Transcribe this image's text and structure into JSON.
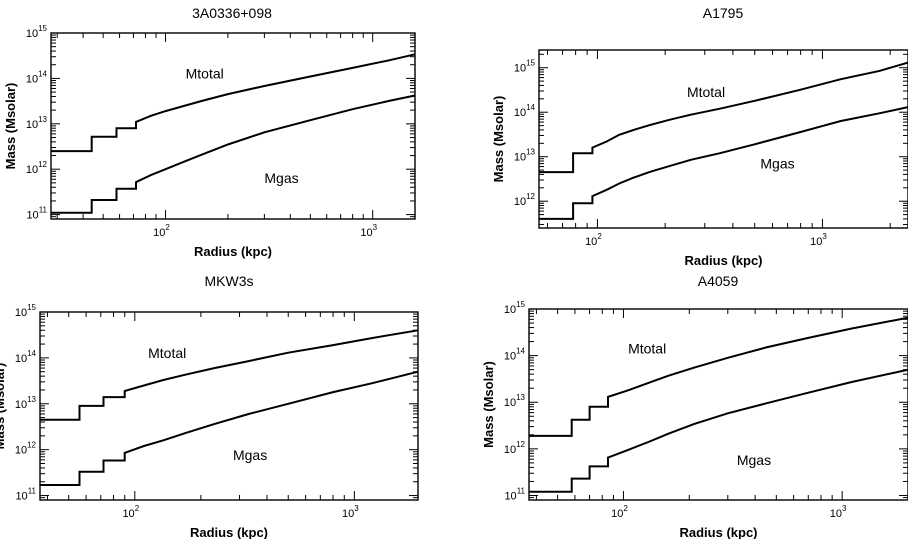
{
  "chart_data": [
    {
      "type": "line",
      "title": "3A0336+098",
      "xlabel": "Radius (kpc)",
      "ylabel": "Mass (Msolar)",
      "xscale": "log",
      "yscale": "log",
      "xlim": [
        28,
        1600
      ],
      "ylim": [
        80000000000.0,
        1000000000000000.0
      ],
      "xticks": [
        {
          "base": "10",
          "exp": "2",
          "value": 100
        },
        {
          "base": "10",
          "exp": "3",
          "value": 1000
        }
      ],
      "yticks": [
        {
          "base": "10",
          "exp": "11",
          "value": 100000000000.0
        },
        {
          "base": "10",
          "exp": "12",
          "value": 1000000000000.0
        },
        {
          "base": "10",
          "exp": "13",
          "value": 10000000000000.0
        },
        {
          "base": "10",
          "exp": "14",
          "value": 100000000000000.0
        },
        {
          "base": "10",
          "exp": "15",
          "value": 1000000000000000.0
        }
      ],
      "series": [
        {
          "name": "Mtotal",
          "label_at": [
            125,
            100000000000000.0
          ],
          "x": [
            28,
            44,
            44,
            58,
            58,
            72,
            72,
            85,
            100,
            120,
            150,
            200,
            300,
            500,
            800,
            1200,
            1600
          ],
          "y": [
            2500000000000.0,
            2500000000000.0,
            5200000000000.0,
            5200000000000.0,
            8000000000000.0,
            8000000000000.0,
            11000000000000.0,
            15000000000000.0,
            19000000000000.0,
            24000000000000.0,
            32000000000000.0,
            45000000000000.0,
            68000000000000.0,
            110000000000000.0,
            170000000000000.0,
            250000000000000.0,
            340000000000000.0
          ]
        },
        {
          "name": "Mgas",
          "label_at": [
            300,
            500000000000.0
          ],
          "x": [
            28,
            44,
            44,
            58,
            58,
            72,
            72,
            85,
            100,
            120,
            150,
            200,
            300,
            500,
            800,
            1200,
            1600
          ],
          "y": [
            110000000000.0,
            110000000000.0,
            210000000000.0,
            210000000000.0,
            370000000000.0,
            370000000000.0,
            520000000000.0,
            740000000000.0,
            1000000000000.0,
            1400000000000.0,
            2100000000000.0,
            3500000000000.0,
            6500000000000.0,
            12000000000000.0,
            21000000000000.0,
            32000000000000.0,
            42000000000000.0
          ]
        }
      ]
    },
    {
      "type": "line",
      "title": "A1795",
      "xlabel": "Radius (kpc)",
      "ylabel": "Mass (Msolar)",
      "xscale": "log",
      "yscale": "log",
      "xlim": [
        55,
        2400
      ],
      "ylim": [
        250000000000.0,
        2500000000000000.0
      ],
      "xticks": [
        {
          "base": "10",
          "exp": "2",
          "value": 100
        },
        {
          "base": "10",
          "exp": "3",
          "value": 1000
        }
      ],
      "yticks": [
        {
          "base": "10",
          "exp": "12",
          "value": 1000000000000.0
        },
        {
          "base": "10",
          "exp": "13",
          "value": 10000000000000.0
        },
        {
          "base": "10",
          "exp": "14",
          "value": 100000000000000.0
        },
        {
          "base": "10",
          "exp": "15",
          "value": 1000000000000000.0
        }
      ],
      "series": [
        {
          "name": "Mtotal",
          "label_at": [
            250,
            220000000000000.0
          ],
          "x": [
            55,
            78,
            78,
            95,
            95,
            110,
            125,
            145,
            170,
            210,
            260,
            350,
            500,
            800,
            1200,
            1800,
            2400
          ],
          "y": [
            4500000000000.0,
            4500000000000.0,
            12000000000000.0,
            12000000000000.0,
            16000000000000.0,
            22000000000000.0,
            31000000000000.0,
            40000000000000.0,
            51000000000000.0,
            68000000000000.0,
            88000000000000.0,
            120000000000000.0,
            180000000000000.0,
            320000000000000.0,
            550000000000000.0,
            850000000000000.0,
            1300000000000000.0
          ]
        },
        {
          "name": "Mgas",
          "label_at": [
            530,
            5500000000000.0
          ],
          "x": [
            55,
            78,
            78,
            95,
            95,
            110,
            125,
            145,
            170,
            210,
            260,
            350,
            500,
            800,
            1200,
            1800,
            2400
          ],
          "y": [
            400000000000.0,
            400000000000.0,
            900000000000.0,
            900000000000.0,
            1300000000000.0,
            1800000000000.0,
            2500000000000.0,
            3400000000000.0,
            4500000000000.0,
            6200000000000.0,
            8500000000000.0,
            12000000000000.0,
            19000000000000.0,
            36000000000000.0,
            63000000000000.0,
            95000000000000.0,
            130000000000000.0
          ]
        }
      ]
    },
    {
      "type": "line",
      "title": "MKW3s",
      "xlabel": "Radius (kpc)",
      "ylabel": "Mass (Msolar)",
      "xscale": "log",
      "yscale": "log",
      "xlim": [
        37,
        1950
      ],
      "ylim": [
        80000000000.0,
        1000000000000000.0
      ],
      "xticks": [
        {
          "base": "10",
          "exp": "2",
          "value": 100
        },
        {
          "base": "10",
          "exp": "3",
          "value": 1000
        }
      ],
      "yticks": [
        {
          "base": "10",
          "exp": "11",
          "value": 100000000000.0
        },
        {
          "base": "10",
          "exp": "12",
          "value": 1000000000000.0
        },
        {
          "base": "10",
          "exp": "13",
          "value": 10000000000000.0
        },
        {
          "base": "10",
          "exp": "14",
          "value": 100000000000000.0
        },
        {
          "base": "10",
          "exp": "15",
          "value": 1000000000000000.0
        }
      ],
      "series": [
        {
          "name": "Mtotal",
          "label_at": [
            115,
            100000000000000.0
          ],
          "x": [
            37,
            56,
            56,
            72,
            72,
            90,
            90,
            110,
            135,
            170,
            230,
            330,
            500,
            800,
            1200,
            1950
          ],
          "y": [
            4500000000000.0,
            4500000000000.0,
            9000000000000.0,
            9000000000000.0,
            14000000000000.0,
            14000000000000.0,
            19000000000000.0,
            25000000000000.0,
            33000000000000.0,
            43000000000000.0,
            60000000000000.0,
            85000000000000.0,
            130000000000000.0,
            190000000000000.0,
            270000000000000.0,
            400000000000000.0
          ]
        },
        {
          "name": "Mgas",
          "label_at": [
            280,
            600000000000.0
          ],
          "x": [
            37,
            56,
            56,
            72,
            72,
            90,
            90,
            110,
            135,
            170,
            230,
            330,
            500,
            800,
            1200,
            1950
          ],
          "y": [
            170000000000.0,
            170000000000.0,
            330000000000.0,
            330000000000.0,
            580000000000.0,
            580000000000.0,
            850000000000.0,
            1200000000000.0,
            1600000000000.0,
            2300000000000.0,
            3600000000000.0,
            6000000000000.0,
            10000000000000.0,
            18000000000000.0,
            28000000000000.0,
            50000000000000.0
          ]
        }
      ]
    },
    {
      "type": "line",
      "title": "A4059",
      "xlabel": "Radius (kpc)",
      "ylabel": "Mass (Msolar)",
      "xscale": "log",
      "yscale": "log",
      "xlim": [
        37,
        2000
      ],
      "ylim": [
        80000000000.0,
        1000000000000000.0
      ],
      "xticks": [
        {
          "base": "10",
          "exp": "2",
          "value": 100
        },
        {
          "base": "10",
          "exp": "3",
          "value": 1000
        }
      ],
      "yticks": [
        {
          "base": "10",
          "exp": "11",
          "value": 100000000000.0
        },
        {
          "base": "10",
          "exp": "12",
          "value": 1000000000000.0
        },
        {
          "base": "10",
          "exp": "13",
          "value": 10000000000000.0
        },
        {
          "base": "10",
          "exp": "14",
          "value": 100000000000000.0
        },
        {
          "base": "10",
          "exp": "15",
          "value": 1000000000000000.0
        }
      ],
      "series": [
        {
          "name": "Mtotal",
          "label_at": [
            105,
            110000000000000.0
          ],
          "x": [
            37,
            58,
            58,
            70,
            70,
            85,
            85,
            105,
            130,
            160,
            210,
            300,
            450,
            700,
            1100,
            2000
          ],
          "y": [
            1900000000000.0,
            1900000000000.0,
            4200000000000.0,
            4200000000000.0,
            8000000000000.0,
            8000000000000.0,
            13000000000000.0,
            18000000000000.0,
            26000000000000.0,
            37000000000000.0,
            55000000000000.0,
            90000000000000.0,
            150000000000000.0,
            240000000000000.0,
            380000000000000.0,
            650000000000000.0
          ]
        },
        {
          "name": "Mgas",
          "label_at": [
            330,
            450000000000.0
          ],
          "x": [
            37,
            58,
            58,
            70,
            70,
            85,
            85,
            105,
            130,
            160,
            210,
            300,
            450,
            700,
            1100,
            2000
          ],
          "y": [
            120000000000.0,
            120000000000.0,
            230000000000.0,
            230000000000.0,
            420000000000.0,
            420000000000.0,
            650000000000.0,
            950000000000.0,
            1400000000000.0,
            2100000000000.0,
            3400000000000.0,
            5800000000000.0,
            9500000000000.0,
            16000000000000.0,
            27000000000000.0,
            50000000000000.0
          ]
        }
      ]
    }
  ]
}
